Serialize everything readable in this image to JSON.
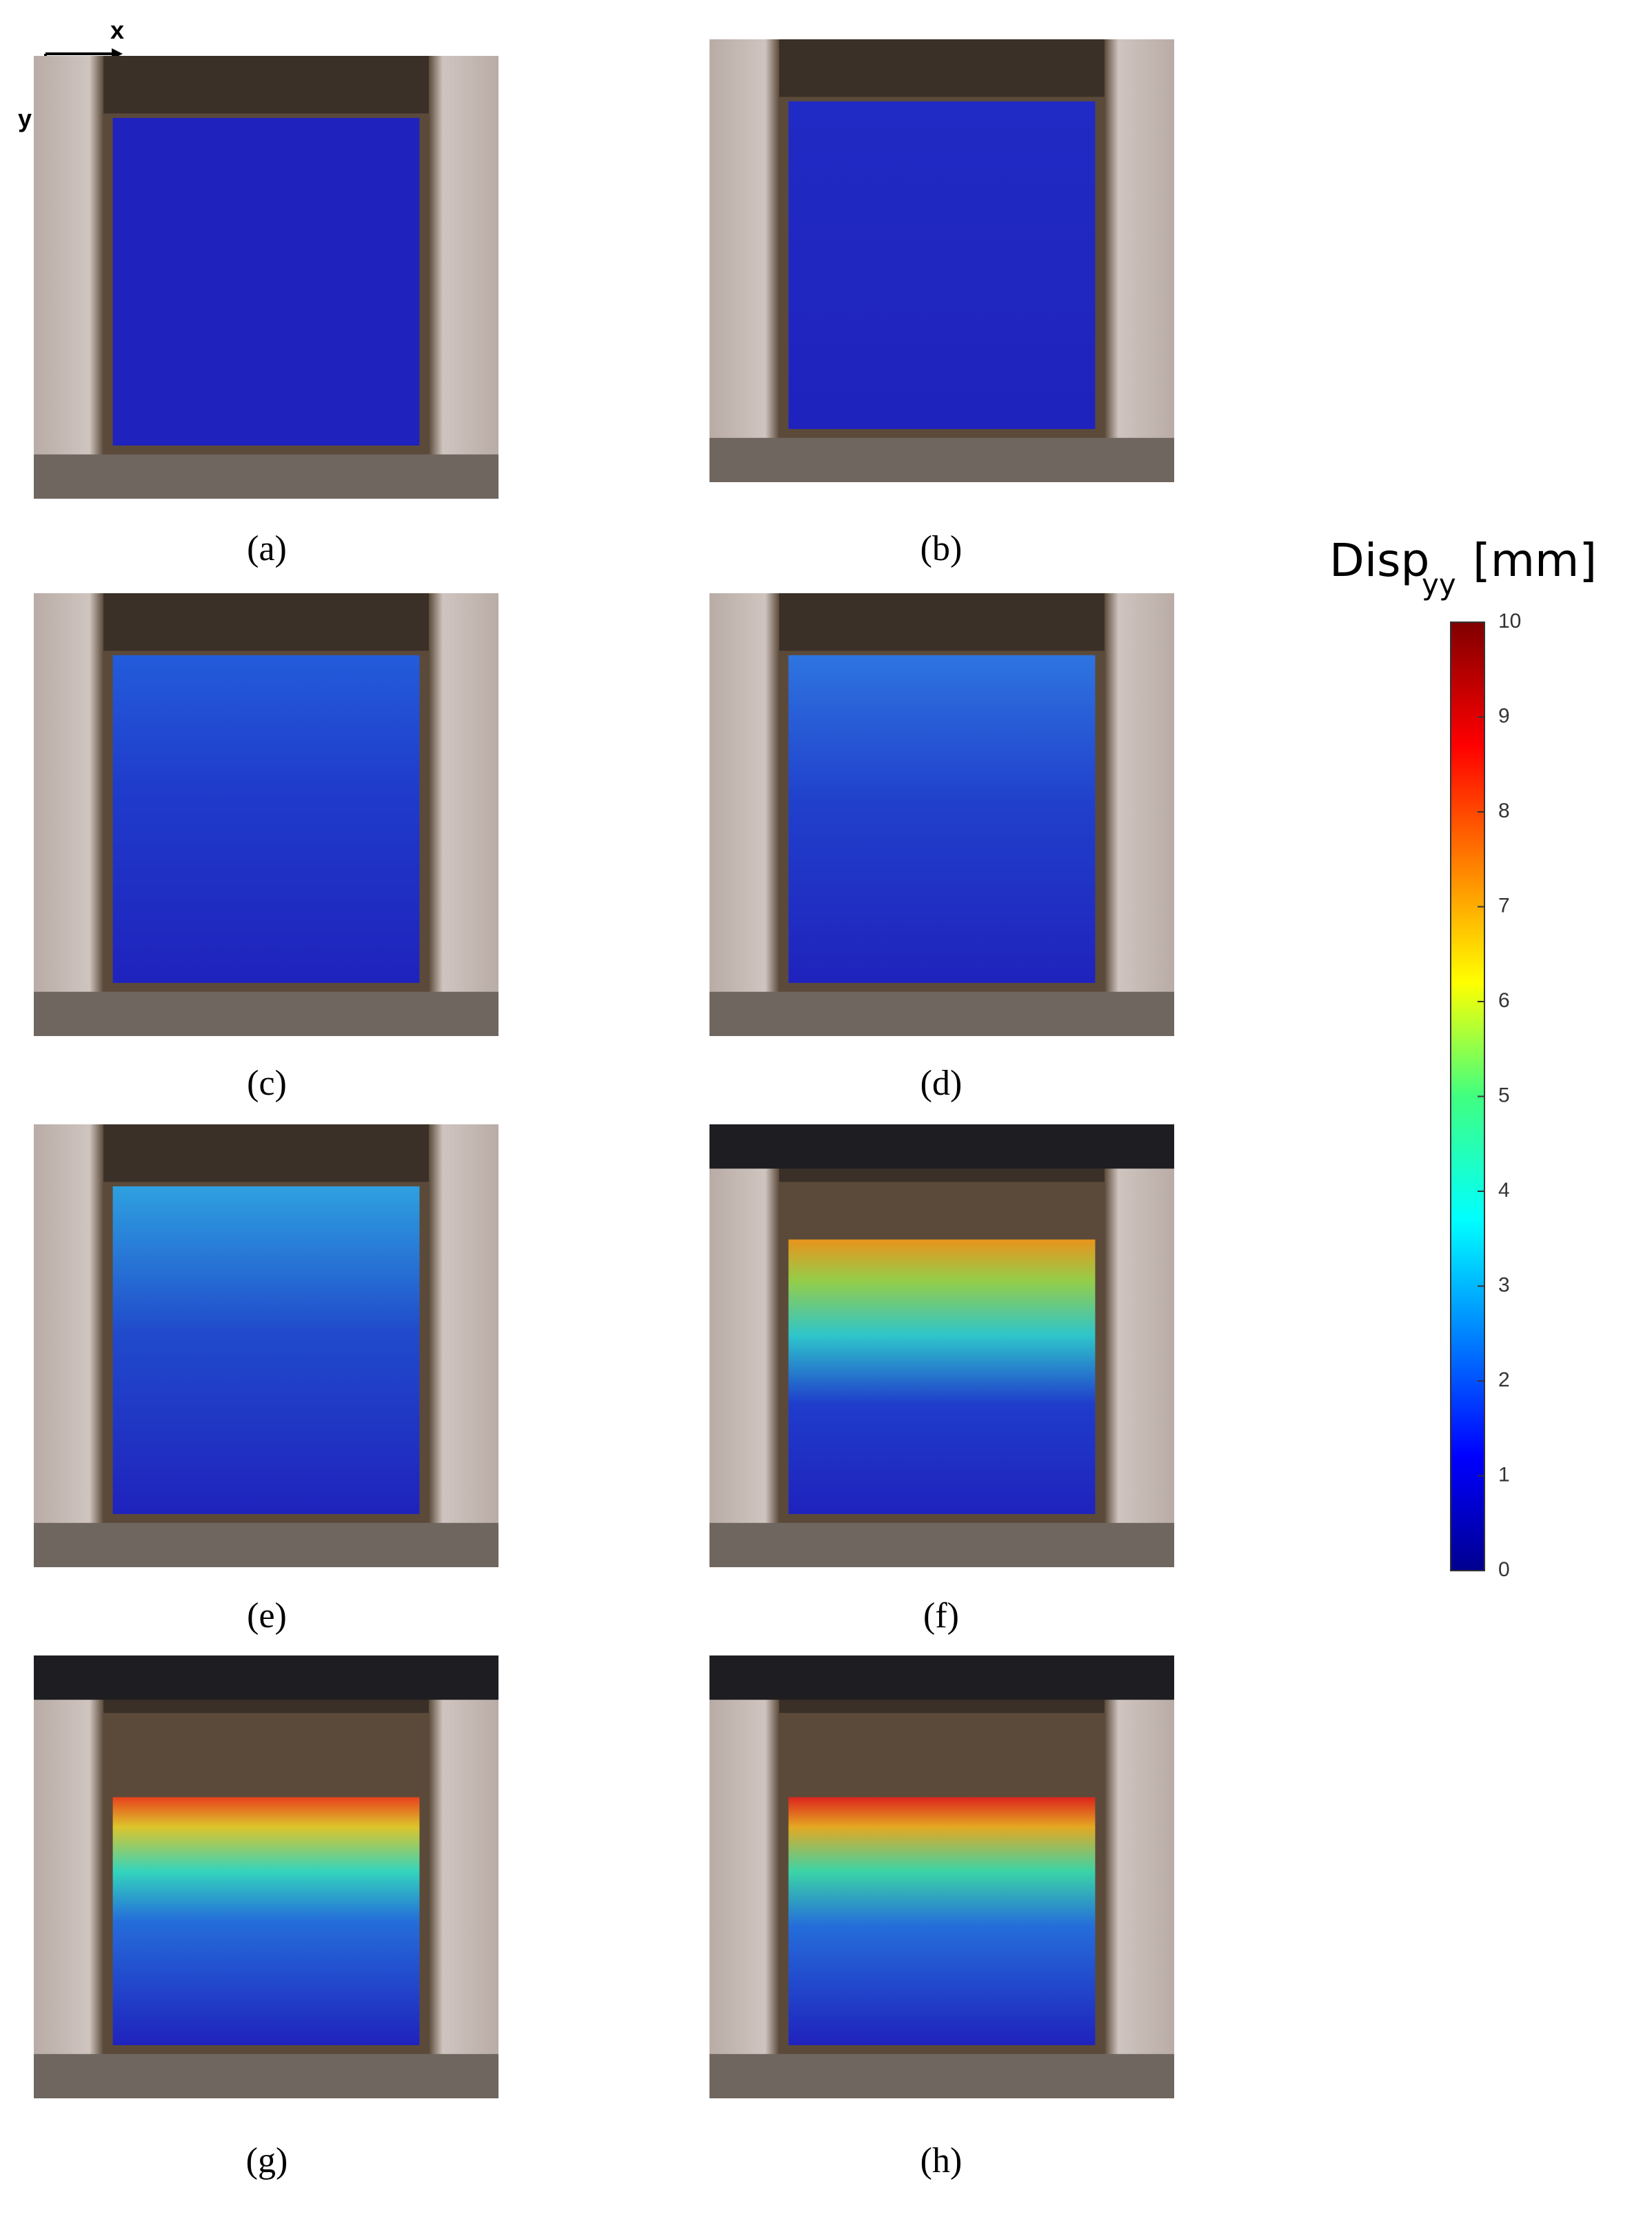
{
  "axes_indicator": {
    "x": "x",
    "y": "y"
  },
  "panels": [
    {
      "label": "(a)"
    },
    {
      "label": "(b)"
    },
    {
      "label": "(c)"
    },
    {
      "label": "(d)"
    },
    {
      "label": "(e)"
    },
    {
      "label": "(f)"
    },
    {
      "label": "(g)"
    },
    {
      "label": "(h)"
    }
  ],
  "colorbar": {
    "title": "Disp",
    "title_sub": "yy",
    "unit": "[mm]",
    "range": [
      0,
      10
    ],
    "ticks": [
      0,
      1,
      2,
      3,
      4,
      5,
      6,
      7,
      8,
      9,
      10
    ]
  }
}
